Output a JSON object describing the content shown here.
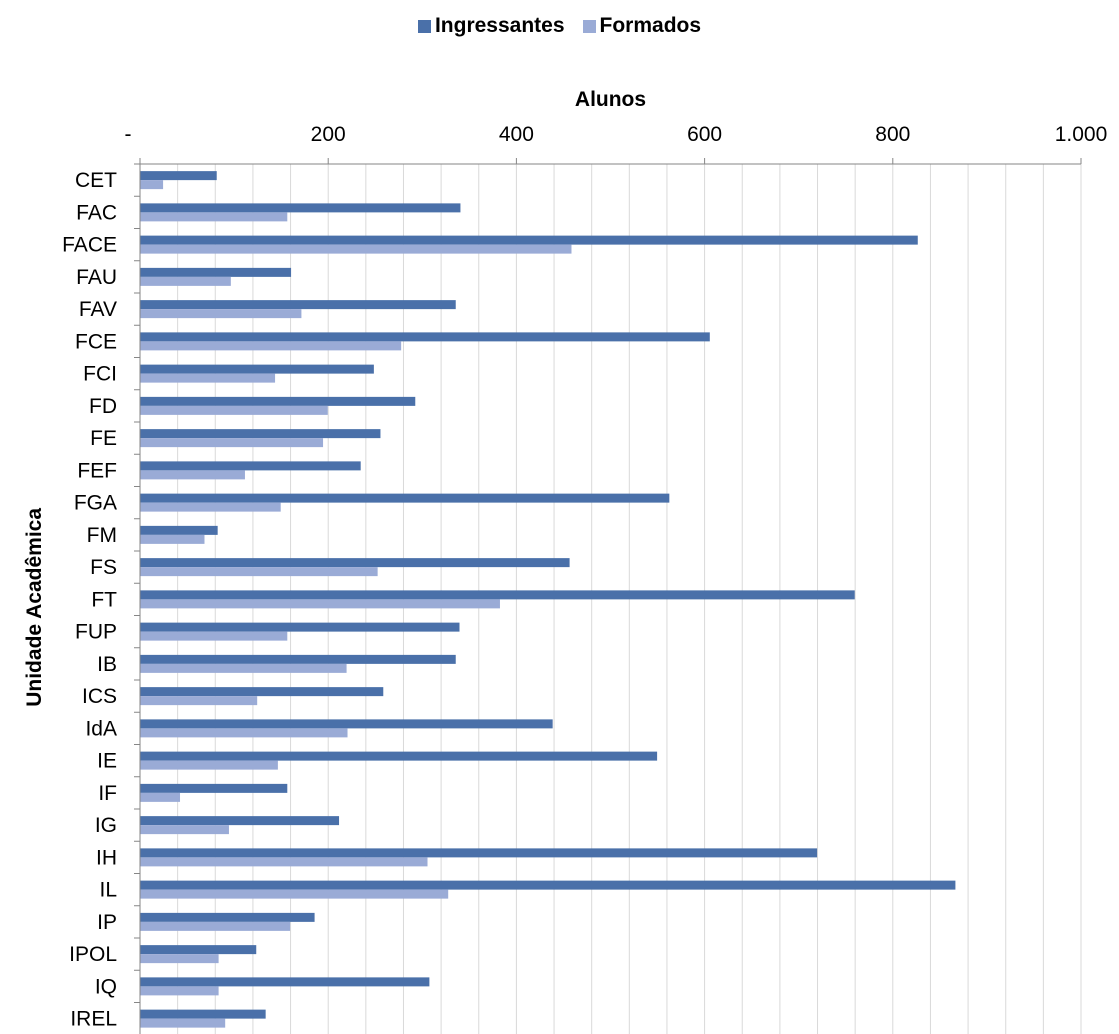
{
  "chart_data": {
    "type": "bar",
    "orientation": "horizontal",
    "xlabel": "Alunos",
    "ylabel": "Unidade Acadêmica",
    "xlim": [
      0,
      1000
    ],
    "x_ticks": [
      0,
      200,
      400,
      600,
      800,
      1000
    ],
    "x_tick_labels": [
      "-",
      "200",
      "400",
      "600",
      "800",
      "1.000"
    ],
    "grid": "vertical lines every 40",
    "legend_position": "top",
    "categories": [
      "CET",
      "FAC",
      "FACE",
      "FAU",
      "FAV",
      "FCE",
      "FCI",
      "FD",
      "FE",
      "FEF",
      "FGA",
      "FM",
      "FS",
      "FT",
      "FUP",
      "IB",
      "ICS",
      "IdA",
      "IE",
      "IF",
      "IG",
      "IH",
      "IL",
      "IP",
      "IPOL",
      "IQ",
      "IREL"
    ],
    "series": [
      {
        "name": "Ingressantes",
        "color": "#4A70A9",
        "values": [
          81,
          340,
          826,
          160,
          335,
          605,
          248,
          292,
          255,
          234,
          562,
          82,
          456,
          759,
          339,
          335,
          258,
          438,
          549,
          156,
          211,
          719,
          866,
          185,
          123,
          307,
          133
        ]
      },
      {
        "name": "Formados",
        "color": "#9AABD6",
        "values": [
          24,
          156,
          458,
          96,
          171,
          277,
          143,
          199,
          194,
          111,
          149,
          68,
          252,
          382,
          156,
          219,
          124,
          220,
          146,
          42,
          94,
          305,
          327,
          159,
          83,
          83,
          90
        ]
      }
    ]
  }
}
